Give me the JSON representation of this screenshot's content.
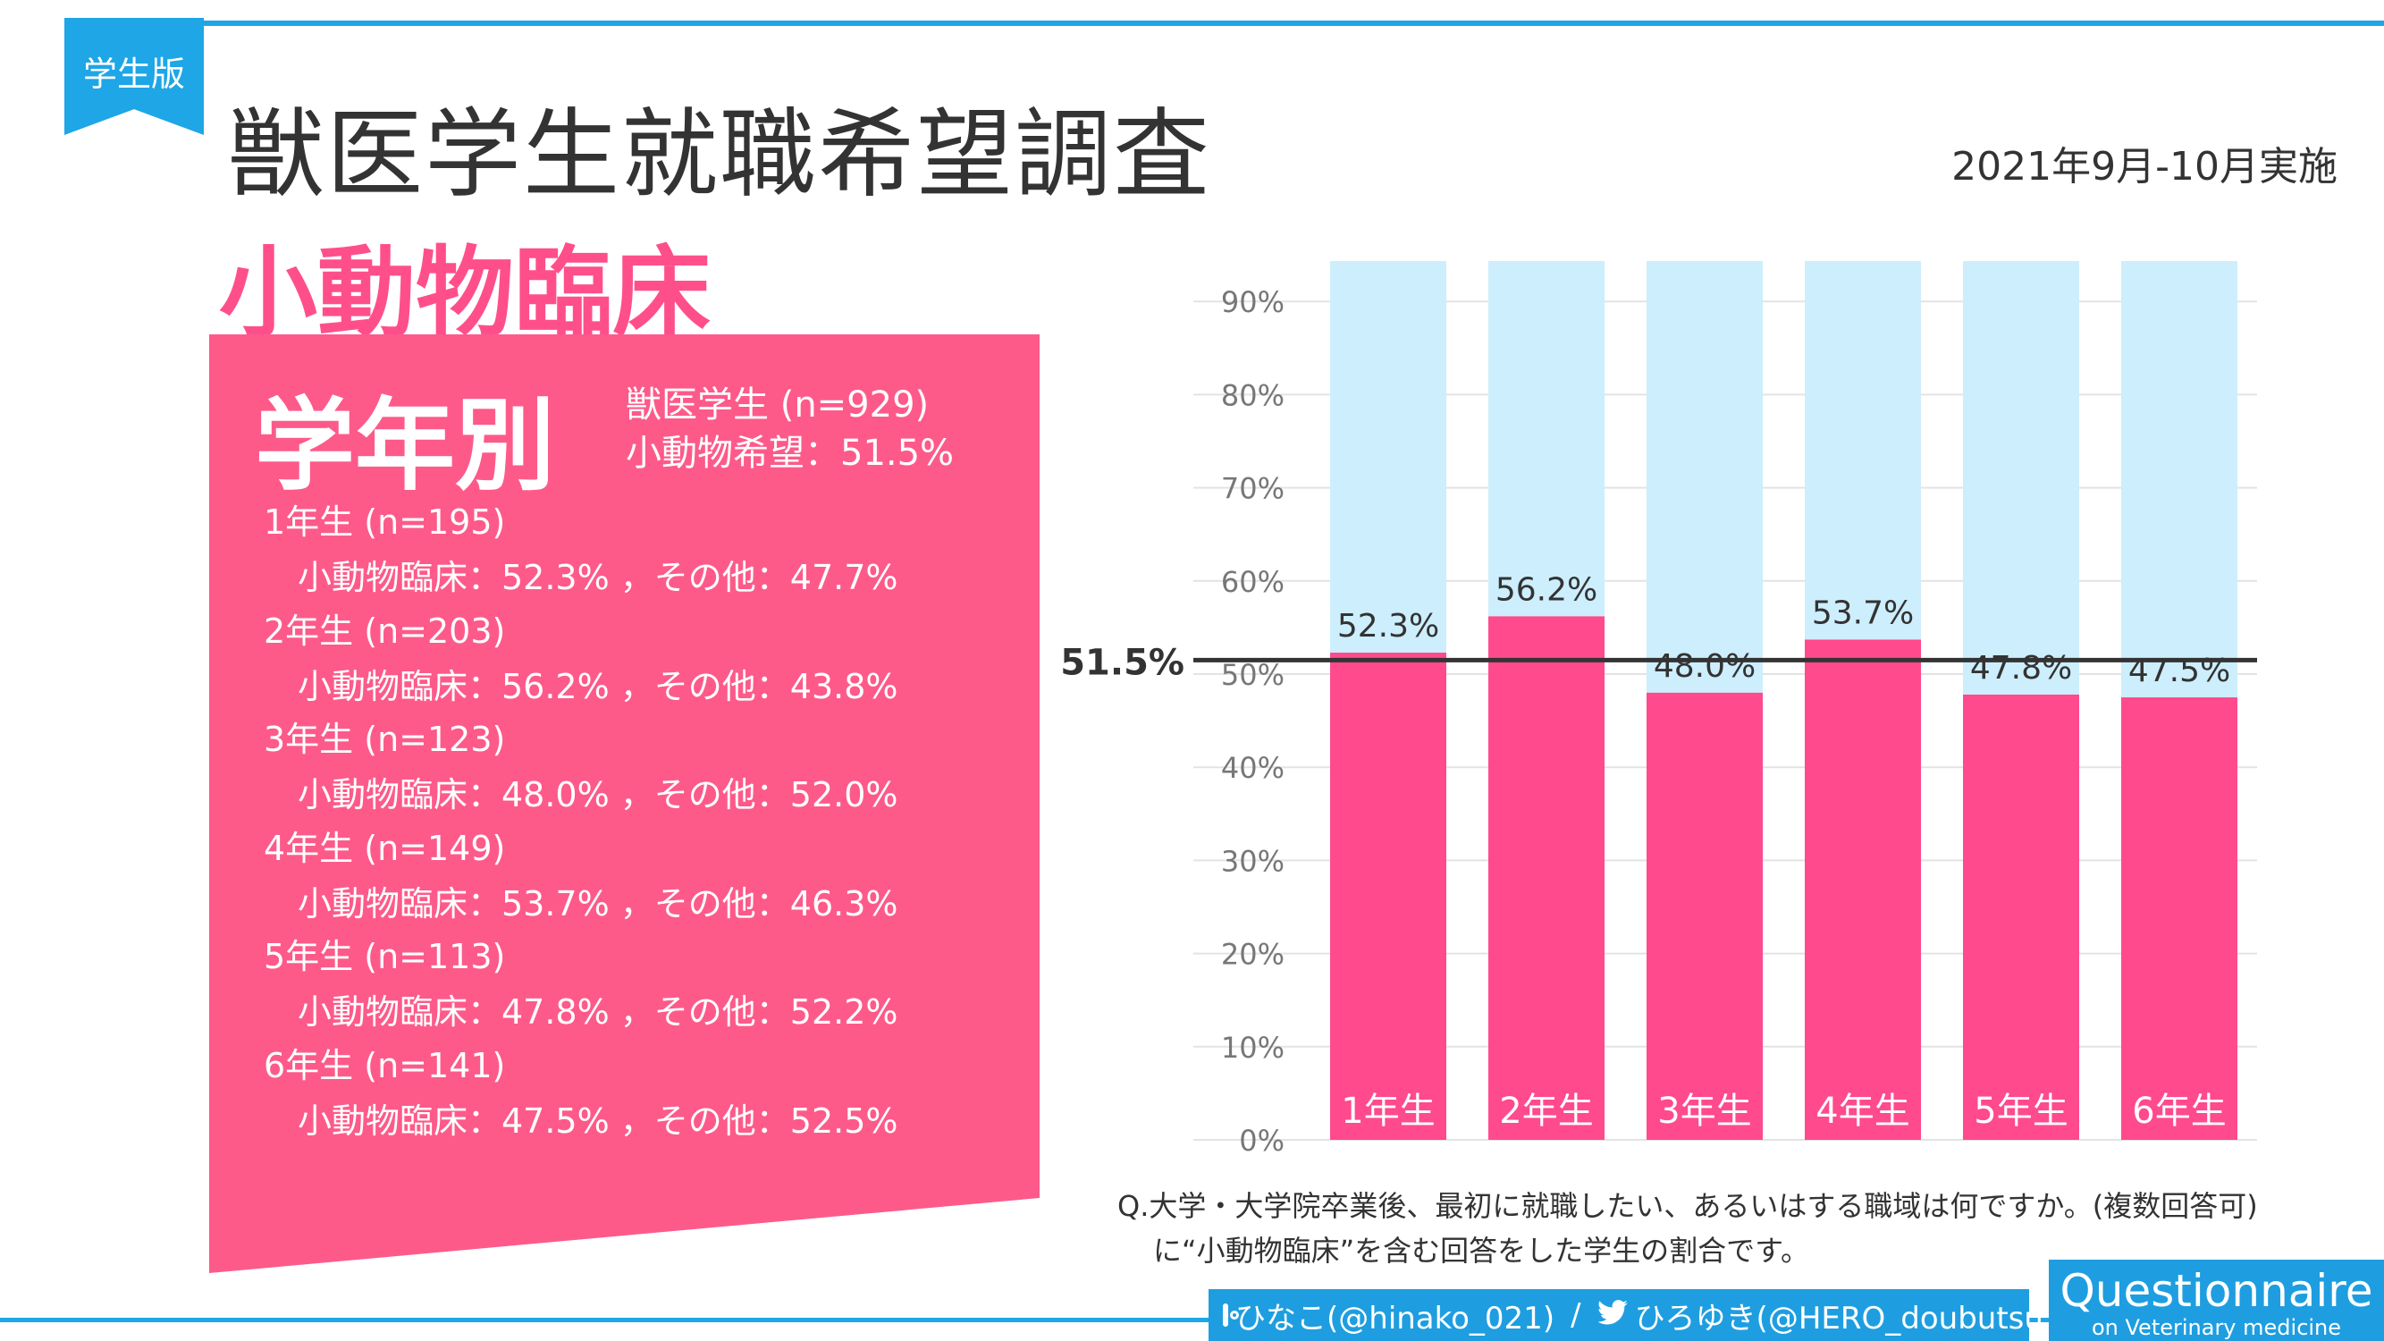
{
  "header": {
    "badge": "学生版",
    "title": "獣医学生就職希望調査",
    "survey_date": "2021年9月-10月実施"
  },
  "category_title": "小動物臨床",
  "panel": {
    "heading": "学年別",
    "summary_line1": "獣医学生 (n=929)",
    "summary_line2": "小動物希望：51.5%",
    "grades": [
      {
        "head": "1年生 (n=195)",
        "detail": "小動物臨床：52.3% ，その他：47.7%"
      },
      {
        "head": "2年生 (n=203)",
        "detail": "小動物臨床：56.2% ，その他：43.8%"
      },
      {
        "head": "3年生 (n=123)",
        "detail": "小動物臨床：48.0% ，その他：52.0%"
      },
      {
        "head": "4年生 (n=149)",
        "detail": "小動物臨床：53.7% ，その他：46.3%"
      },
      {
        "head": "5年生 (n=113)",
        "detail": "小動物臨床：47.8% ，その他：52.2%"
      },
      {
        "head": "6年生 (n=141)",
        "detail": "小動物臨床：47.5% ，その他：52.5%"
      }
    ]
  },
  "chart_data": {
    "type": "bar",
    "stacked": true,
    "categories": [
      "1年生",
      "2年生",
      "3年生",
      "4年生",
      "5年生",
      "6年生"
    ],
    "series": [
      {
        "name": "小動物臨床",
        "values": [
          52.3,
          56.2,
          48.0,
          53.7,
          47.8,
          47.5
        ],
        "color": "#ff4a8d"
      },
      {
        "name": "その他",
        "values": [
          47.7,
          43.8,
          52.0,
          46.3,
          52.2,
          52.5
        ],
        "color": "#cdeefc"
      }
    ],
    "data_labels": [
      "52.3%",
      "56.2%",
      "48.0%",
      "53.7%",
      "47.8%",
      "47.5%"
    ],
    "reference_line": {
      "value": 51.5,
      "label": "51.5%"
    },
    "y_ticks": [
      "0%",
      "10%",
      "20%",
      "30%",
      "40%",
      "50%",
      "60%",
      "70%",
      "80%",
      "90%"
    ],
    "ylim": [
      0,
      100
    ],
    "grid": true
  },
  "question": {
    "line1": "Q.大学・大学院卒業後、最初に就職したい、あるいはする職域は何ですか。(複数回答可)",
    "line2": "に“小動物臨床”を含む回答をした学生の割合です。"
  },
  "footer": {
    "instagram_handle": "ひなこ(@hinako_021)",
    "separator": "/",
    "twitter_handle": "ひろゆき(@HERO_doubutsu)",
    "brand_title": "Questionnaire",
    "brand_sub": "on Veterinary medicine"
  },
  "colors": {
    "accent_blue": "#1ea6e6",
    "pink": "#ff4a8d",
    "light_blue": "#cdeefc"
  }
}
